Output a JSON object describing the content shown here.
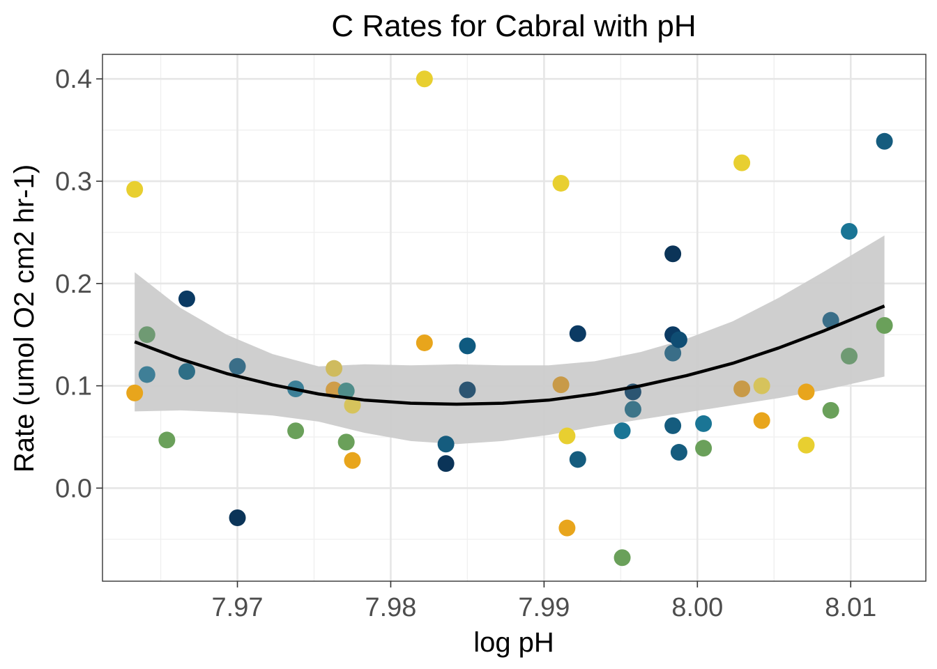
{
  "chart_data": {
    "type": "scatter",
    "title": "C Rates for Cabral with pH",
    "xlabel": "log pH",
    "ylabel": "Rate (umol O2 cm2 hr-1)",
    "xlim": [
      7.9612,
      8.0149
    ],
    "ylim": [
      -0.091,
      0.424
    ],
    "x_ticks": [
      7.97,
      7.98,
      7.99,
      8.0,
      8.01
    ],
    "x_tick_labels": [
      "7.97",
      "7.98",
      "7.99",
      "8.00",
      "8.01"
    ],
    "y_ticks": [
      0.0,
      0.1,
      0.2,
      0.3,
      0.4
    ],
    "y_tick_labels": [
      "0.0",
      "0.1",
      "0.2",
      "0.3",
      "0.4"
    ],
    "grid": true,
    "legend": "none",
    "points": [
      {
        "x": 7.9633,
        "y": 0.292,
        "color": "#e8cf30"
      },
      {
        "x": 7.9633,
        "y": 0.093,
        "color": "#e8a51c"
      },
      {
        "x": 7.9641,
        "y": 0.15,
        "color": "#6f9a73"
      },
      {
        "x": 7.9641,
        "y": 0.111,
        "color": "#3f7f97"
      },
      {
        "x": 7.9654,
        "y": 0.047,
        "color": "#6aa05a"
      },
      {
        "x": 7.9667,
        "y": 0.185,
        "color": "#0b3a63"
      },
      {
        "x": 7.9667,
        "y": 0.114,
        "color": "#2e6e86"
      },
      {
        "x": 7.97,
        "y": 0.119,
        "color": "#3a6e88"
      },
      {
        "x": 7.97,
        "y": -0.029,
        "color": "#0b3458"
      },
      {
        "x": 7.9738,
        "y": 0.097,
        "color": "#3c7f97"
      },
      {
        "x": 7.9738,
        "y": 0.056,
        "color": "#6aa05a"
      },
      {
        "x": 7.9763,
        "y": 0.117,
        "color": "#cfbb5e"
      },
      {
        "x": 7.9763,
        "y": 0.096,
        "color": "#cf9d48"
      },
      {
        "x": 7.9771,
        "y": 0.095,
        "color": "#4f8d8a"
      },
      {
        "x": 7.9771,
        "y": 0.045,
        "color": "#6aa05a"
      },
      {
        "x": 7.9775,
        "y": 0.081,
        "color": "#d6c35c"
      },
      {
        "x": 7.9775,
        "y": 0.027,
        "color": "#e8a51c"
      },
      {
        "x": 7.9822,
        "y": 0.4,
        "color": "#e8cf30"
      },
      {
        "x": 7.9822,
        "y": 0.142,
        "color": "#e8a51c"
      },
      {
        "x": 7.9836,
        "y": 0.043,
        "color": "#155c7e"
      },
      {
        "x": 7.9836,
        "y": 0.024,
        "color": "#0b3458"
      },
      {
        "x": 7.985,
        "y": 0.139,
        "color": "#0f5a80"
      },
      {
        "x": 7.985,
        "y": 0.096,
        "color": "#2c5572"
      },
      {
        "x": 7.9911,
        "y": 0.298,
        "color": "#e8cf30"
      },
      {
        "x": 7.9911,
        "y": 0.101,
        "color": "#c89a48"
      },
      {
        "x": 7.9915,
        "y": 0.051,
        "color": "#e8cf30"
      },
      {
        "x": 7.9915,
        "y": -0.039,
        "color": "#e8a51c"
      },
      {
        "x": 7.9922,
        "y": 0.151,
        "color": "#0b3a63"
      },
      {
        "x": 7.9922,
        "y": 0.028,
        "color": "#155c7e"
      },
      {
        "x": 7.9951,
        "y": 0.056,
        "color": "#1a7595"
      },
      {
        "x": 7.9951,
        "y": -0.068,
        "color": "#6aa05a"
      },
      {
        "x": 7.9958,
        "y": 0.094,
        "color": "#2c5572"
      },
      {
        "x": 7.9958,
        "y": 0.077,
        "color": "#3d7589"
      },
      {
        "x": 7.9984,
        "y": 0.229,
        "color": "#0b3458"
      },
      {
        "x": 7.9984,
        "y": 0.15,
        "color": "#0b3a63"
      },
      {
        "x": 7.9984,
        "y": 0.132,
        "color": "#3a6e88"
      },
      {
        "x": 7.9984,
        "y": 0.061,
        "color": "#155c7e"
      },
      {
        "x": 7.9988,
        "y": 0.145,
        "color": "#0f4d73"
      },
      {
        "x": 7.9988,
        "y": 0.035,
        "color": "#155c7e"
      },
      {
        "x": 8.0004,
        "y": 0.063,
        "color": "#1a7595"
      },
      {
        "x": 8.0004,
        "y": 0.039,
        "color": "#6aa05a"
      },
      {
        "x": 8.0029,
        "y": 0.318,
        "color": "#e8cf30"
      },
      {
        "x": 8.0029,
        "y": 0.097,
        "color": "#c89a48"
      },
      {
        "x": 8.0042,
        "y": 0.1,
        "color": "#d6c35c"
      },
      {
        "x": 8.0042,
        "y": 0.066,
        "color": "#e8a51c"
      },
      {
        "x": 8.0071,
        "y": 0.094,
        "color": "#e8a51c"
      },
      {
        "x": 8.0071,
        "y": 0.042,
        "color": "#e8cf30"
      },
      {
        "x": 8.0087,
        "y": 0.164,
        "color": "#3a6e88"
      },
      {
        "x": 8.0087,
        "y": 0.076,
        "color": "#6aa05a"
      },
      {
        "x": 8.0099,
        "y": 0.251,
        "color": "#1a7595"
      },
      {
        "x": 8.0099,
        "y": 0.129,
        "color": "#6f9a73"
      },
      {
        "x": 8.0122,
        "y": 0.339,
        "color": "#155c7e"
      },
      {
        "x": 8.0122,
        "y": 0.159,
        "color": "#6aa05a"
      }
    ],
    "fit": {
      "type": "quadratic",
      "x": [
        7.9633,
        7.9663,
        7.9693,
        7.9723,
        7.9753,
        7.9783,
        7.9813,
        7.9843,
        7.9873,
        7.9903,
        7.9933,
        7.9963,
        7.9993,
        8.0023,
        8.0053,
        8.0083,
        8.0122
      ],
      "y": [
        0.143,
        0.126,
        0.112,
        0.101,
        0.092,
        0.086,
        0.083,
        0.082,
        0.083,
        0.086,
        0.092,
        0.1,
        0.11,
        0.122,
        0.137,
        0.154,
        0.178
      ],
      "upper": [
        0.211,
        0.176,
        0.15,
        0.131,
        0.119,
        0.121,
        0.12,
        0.121,
        0.12,
        0.12,
        0.124,
        0.133,
        0.146,
        0.163,
        0.186,
        0.212,
        0.247
      ],
      "lower": [
        0.075,
        0.076,
        0.074,
        0.071,
        0.065,
        0.054,
        0.046,
        0.043,
        0.046,
        0.052,
        0.06,
        0.067,
        0.074,
        0.081,
        0.088,
        0.096,
        0.109
      ],
      "line_color": "#000000",
      "band_color": "#cccccc"
    }
  }
}
